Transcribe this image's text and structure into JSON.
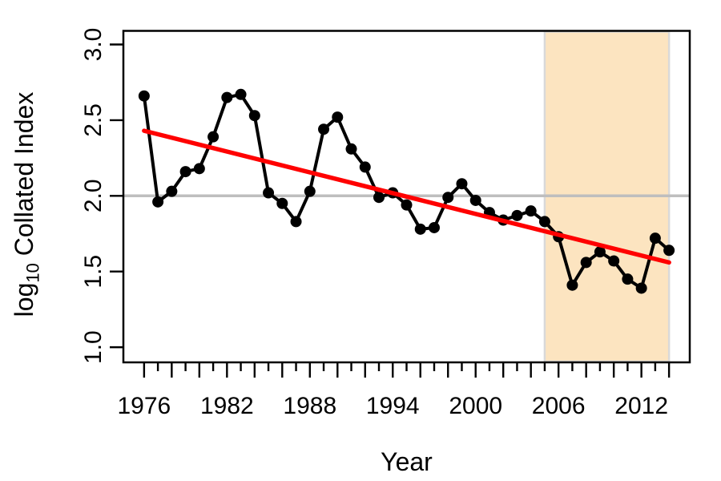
{
  "figure": {
    "background": "#ffffff"
  },
  "chart_data": {
    "type": "line",
    "title": "",
    "xlabel": "Year",
    "ylabel": "log10 Collated Index",
    "ylabel_parts": {
      "prefix": "log",
      "subscript": "10",
      "suffix": " Collated Index"
    },
    "x": [
      1976,
      1977,
      1978,
      1979,
      1980,
      1981,
      1982,
      1983,
      1984,
      1985,
      1986,
      1987,
      1988,
      1989,
      1990,
      1991,
      1992,
      1993,
      1994,
      1995,
      1996,
      1997,
      1998,
      1999,
      2000,
      2001,
      2002,
      2003,
      2004,
      2005,
      2006,
      2007,
      2008,
      2009,
      2010,
      2011,
      2012,
      2013,
      2014
    ],
    "series": [
      {
        "name": "collated-index",
        "color": "#000000",
        "marker": "filled-circle",
        "values": [
          2.66,
          1.96,
          2.03,
          2.16,
          2.18,
          2.39,
          2.65,
          2.67,
          2.53,
          2.02,
          1.95,
          1.83,
          2.03,
          2.44,
          2.52,
          2.31,
          2.19,
          1.99,
          2.02,
          1.94,
          1.78,
          1.79,
          1.99,
          2.08,
          1.97,
          1.89,
          1.84,
          1.87,
          1.9,
          1.83,
          1.73,
          1.41,
          1.56,
          1.63,
          1.57,
          1.45,
          1.39,
          1.72,
          1.64
        ]
      }
    ],
    "trend_line": {
      "color": "#ff0000",
      "x1": 1976,
      "y1": 2.43,
      "x2": 2014,
      "y2": 1.56
    },
    "reference_line": {
      "value": 2.0,
      "color": "#bebebe"
    },
    "highlight_band": {
      "x_start": 2005,
      "x_end": 2014,
      "fill": "#fce4c0",
      "border": "#d9d9d9"
    },
    "axes": {
      "xlim": [
        1974.5,
        2015.5
      ],
      "ylim": [
        0.9,
        3.09
      ],
      "x_label_years": [
        1976,
        1982,
        1988,
        1994,
        2000,
        2006,
        2012
      ],
      "x_tick_labels": [
        "1976",
        "1982",
        "1988",
        "1994",
        "2000",
        "2006",
        "2012"
      ],
      "x_major_ticks": [
        1976,
        1978,
        1980,
        1982,
        1984,
        1986,
        1988,
        1990,
        1992,
        1994,
        1996,
        1998,
        2000,
        2002,
        2004,
        2006,
        2008,
        2010,
        2012,
        2014
      ],
      "x_minor_ticks": [
        1977,
        1979,
        1981,
        1983,
        1985,
        1987,
        1989,
        1991,
        1993,
        1995,
        1997,
        1999,
        2001,
        2003,
        2005,
        2007,
        2009,
        2011,
        2013
      ],
      "y_ticks": [
        1.0,
        1.5,
        2.0,
        2.5,
        3.0
      ],
      "y_tick_labels": [
        "1.0",
        "1.5",
        "2.0",
        "2.5",
        "3.0"
      ]
    },
    "grid": false,
    "legend": null
  }
}
